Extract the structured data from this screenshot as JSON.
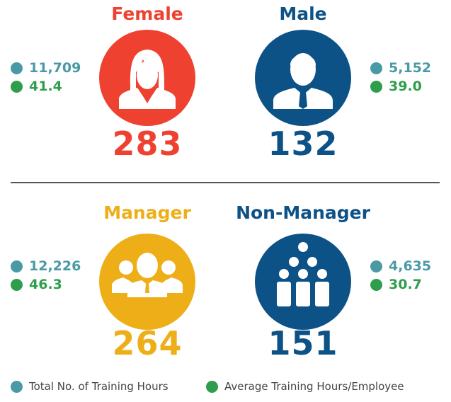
{
  "colors": {
    "female": "#ef4130",
    "male": "#0d5286",
    "manager": "#eeae18",
    "non_manager": "#0d5286",
    "total_hours": "#4a9aa5",
    "avg_hours": "#2e9e4c"
  },
  "groups": [
    {
      "title": "Female",
      "count": "283",
      "total_hours": "11,709",
      "avg_hours": "41.4",
      "icon": "female-person-icon"
    },
    {
      "title": "Male",
      "count": "132",
      "total_hours": "5,152",
      "avg_hours": "39.0",
      "icon": "male-person-icon"
    },
    {
      "title": "Manager",
      "count": "264",
      "total_hours": "12,226",
      "avg_hours": "46.3",
      "icon": "manager-group-icon"
    },
    {
      "title": "Non-Manager",
      "count": "151",
      "total_hours": "4,635",
      "avg_hours": "30.7",
      "icon": "team-pyramid-icon"
    }
  ],
  "legend": {
    "total_hours": "Total No. of Training Hours",
    "avg_hours": "Average Training Hours/Employee"
  }
}
